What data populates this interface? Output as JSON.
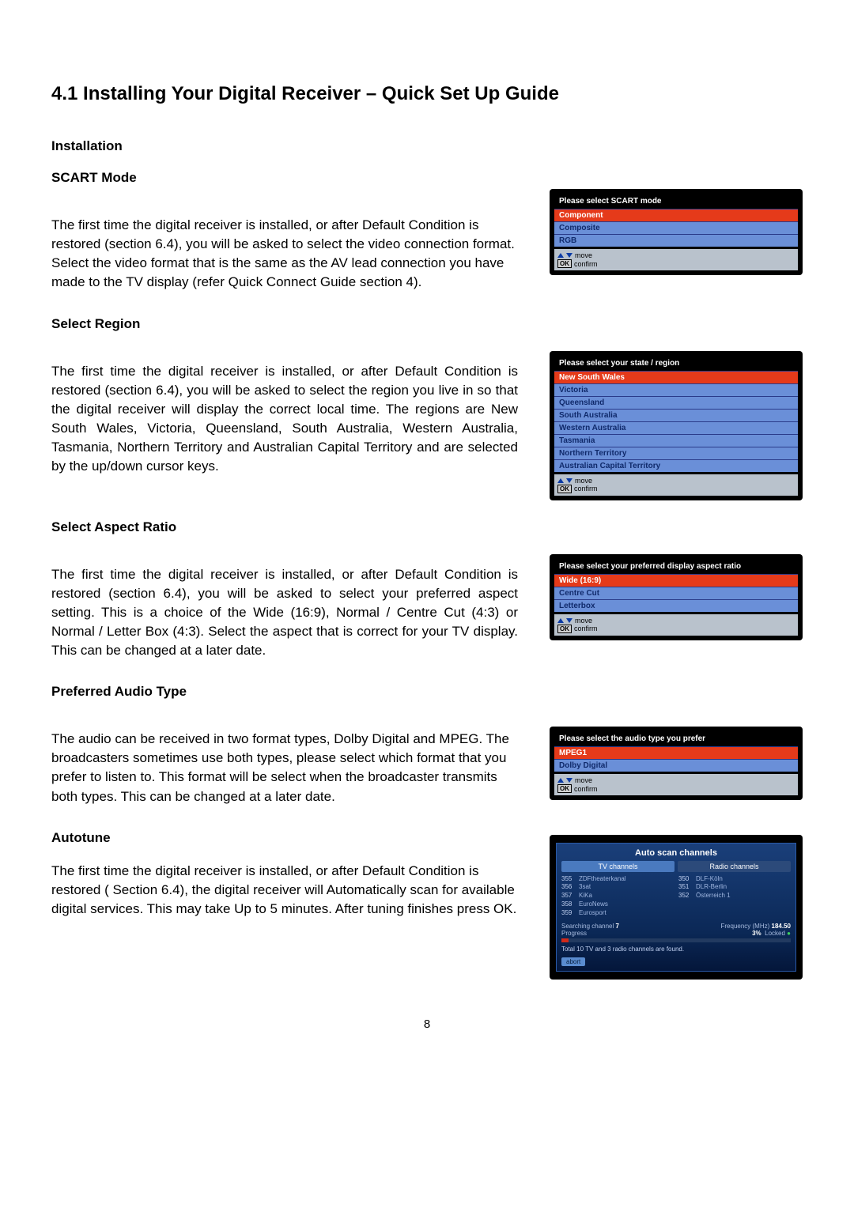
{
  "page_number": "8",
  "heading": "4.1 Installing Your Digital Receiver – Quick Set Up Guide",
  "sections": {
    "install": {
      "subtitle_a": "Installation",
      "subtitle_b": "SCART Mode",
      "body": "The first time the digital receiver is installed, or after Default Condition is restored (section 6.4), you will be asked to select the video connection format. Select the video format that is the same as the AV lead connection you have made to the TV display (refer Quick Connect Guide section 4)."
    },
    "region": {
      "subtitle": "Select Region",
      "body": "The first time the digital receiver is installed, or after Default Condition is restored (section 6.4), you will be asked to select the region you live in so that the digital receiver will display the correct local time. The regions are New South Wales, Victoria, Queensland, South Australia, Western Australia, Tasmania, Northern Territory and Australian Capital Territory  and are selected by the up/down cursor keys."
    },
    "aspect": {
      "subtitle": "Select Aspect Ratio",
      "body": "The first time the digital receiver is installed, or after Default Condition is restored (section 6.4), you will be asked to select your preferred aspect setting.  This is a choice of the Wide (16:9), Normal / Centre Cut (4:3) or Normal / Letter Box (4:3). Select the aspect that is correct for your TV display. This can be changed at a later date."
    },
    "audio": {
      "subtitle": "Preferred Audio Type",
      "body": "The audio can be received in two format types, Dolby Digital and MPEG. The broadcasters sometimes use both types, please select which format that you prefer to listen to. This format will be select when the broadcaster transmits both types. This can be changed at a later date."
    },
    "autotune": {
      "subtitle": "Autotune",
      "body": "The first time the digital receiver is installed, or after Default Condition is restored ( Section 6.4), the digital receiver will Automatically scan for available digital services. This may take Up to 5 minutes. After tuning finishes press OK."
    }
  },
  "osd": {
    "footer_move": "move",
    "footer_confirm": "confirm",
    "footer_ok": "OK",
    "scart": {
      "title": "Please select SCART mode",
      "items": [
        "Component",
        "Composite",
        "RGB"
      ],
      "selected_index": 0,
      "colors": {
        "sel": "#e53a1a",
        "norm": "#6a8fd8",
        "bg": "#000000"
      }
    },
    "region": {
      "title": "Please select your state / region",
      "items": [
        "New South Wales",
        "Victoria",
        "Queensland",
        "South Australia",
        "Western Australia",
        "Tasmania",
        "Northern Territory",
        "Australian Capital Territory"
      ],
      "selected_index": 0
    },
    "aspect": {
      "title": "Please select your preferred display aspect ratio",
      "items": [
        "Wide (16:9)",
        "Centre Cut",
        "Letterbox"
      ],
      "selected_index": 0
    },
    "audio": {
      "title": "Please select the audio type you prefer",
      "items": [
        "MPEG1",
        "Dolby Digital"
      ],
      "selected_index": 0
    }
  },
  "autoscan": {
    "title": "Auto scan channels",
    "tab_tv": "TV channels",
    "tab_radio": "Radio channels",
    "tv_list": [
      {
        "n": "355",
        "name": "ZDFtheaterkanal"
      },
      {
        "n": "356",
        "name": "3sat"
      },
      {
        "n": "357",
        "name": "KiKa"
      },
      {
        "n": "358",
        "name": "EuroNews"
      },
      {
        "n": "359",
        "name": "Eurosport"
      }
    ],
    "radio_list": [
      {
        "n": "350",
        "name": "DLF-Köln"
      },
      {
        "n": "351",
        "name": "DLR-Berlin"
      },
      {
        "n": "352",
        "name": "Österreich 1"
      }
    ],
    "status": {
      "searching_label": "Searching channel",
      "searching_value": "7",
      "freq_label": "Frequency (MHz)",
      "freq_value": "184.50",
      "progress_label": "Progress",
      "progress_pct": "3%",
      "progress_fill_pct": 3,
      "locked_label": "Locked",
      "summary": "Total  10  TV and  3   radio channels are found."
    },
    "abort": "abort",
    "colors": {
      "bg": "#000000",
      "panel_grad_top": "#1a3f7a",
      "panel_grad_bot": "#04163a",
      "bar_fill": "#d02a1a"
    }
  }
}
